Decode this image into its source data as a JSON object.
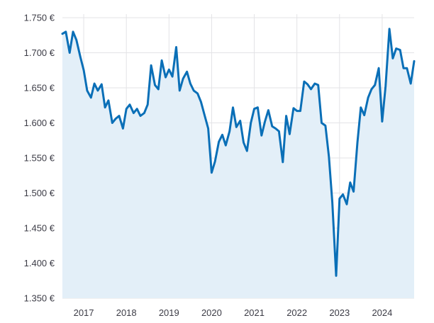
{
  "chart_data": {
    "type": "area",
    "title": "",
    "xlabel": "",
    "ylabel": "",
    "y_tick_labels": [
      "1.750 €",
      "1.700 €",
      "1.650 €",
      "1.600 €",
      "1.550 €",
      "1.500 €",
      "1.450 €",
      "1.400 €",
      "1.350 €"
    ],
    "y_ticks": [
      1750,
      1700,
      1650,
      1600,
      1550,
      1500,
      1450,
      1400,
      1350
    ],
    "x_tick_labels": [
      "2017",
      "2018",
      "2019",
      "2020",
      "2021",
      "2022",
      "2023",
      "2024"
    ],
    "x_ticks": [
      2017,
      2018,
      2019,
      2020,
      2021,
      2022,
      2023,
      2024
    ],
    "xlim": [
      2016.5,
      2024.75
    ],
    "ylim": [
      1350,
      1755
    ],
    "grid": true,
    "colors": {
      "line": "#0a6fb7",
      "fill": "#e3eff8",
      "grid": "#e3e3e6",
      "text": "#3c3c46"
    },
    "series": [
      {
        "x": [
          2016.5,
          2016.58,
          2016.67,
          2016.75,
          2016.83,
          2016.92,
          2017.0,
          2017.08,
          2017.17,
          2017.25,
          2017.33,
          2017.42,
          2017.5,
          2017.58,
          2017.67,
          2017.75,
          2017.83,
          2017.92,
          2018.0,
          2018.08,
          2018.17,
          2018.25,
          2018.33,
          2018.42,
          2018.5,
          2018.58,
          2018.67,
          2018.75,
          2018.83,
          2018.92,
          2019.0,
          2019.08,
          2019.17,
          2019.25,
          2019.33,
          2019.42,
          2019.5,
          2019.58,
          2019.67,
          2019.75,
          2019.83,
          2019.92,
          2020.0,
          2020.08,
          2020.17,
          2020.25,
          2020.33,
          2020.42,
          2020.5,
          2020.58,
          2020.67,
          2020.75,
          2020.83,
          2020.92,
          2021.0,
          2021.08,
          2021.17,
          2021.25,
          2021.33,
          2021.42,
          2021.5,
          2021.58,
          2021.67,
          2021.75,
          2021.83,
          2021.92,
          2022.0,
          2022.08,
          2022.17,
          2022.25,
          2022.33,
          2022.42,
          2022.5,
          2022.58,
          2022.67,
          2022.75,
          2022.83,
          2022.92,
          2023.0,
          2023.08,
          2023.17,
          2023.25,
          2023.33,
          2023.42,
          2023.5,
          2023.58,
          2023.67,
          2023.75,
          2023.83,
          2023.92,
          2024.0,
          2024.08,
          2024.17,
          2024.25,
          2024.33,
          2024.42,
          2024.5,
          2024.58,
          2024.67,
          2024.75
        ],
        "values": [
          1727,
          1730,
          1700,
          1730,
          1718,
          1694,
          1675,
          1646,
          1636,
          1656,
          1646,
          1655,
          1622,
          1632,
          1600,
          1606,
          1610,
          1592,
          1620,
          1626,
          1614,
          1620,
          1610,
          1614,
          1626,
          1682,
          1654,
          1648,
          1689,
          1665,
          1676,
          1666,
          1708,
          1646,
          1663,
          1673,
          1656,
          1646,
          1642,
          1630,
          1612,
          1592,
          1529,
          1545,
          1573,
          1583,
          1568,
          1588,
          1622,
          1594,
          1603,
          1572,
          1560,
          1600,
          1620,
          1622,
          1582,
          1602,
          1618,
          1595,
          1592,
          1588,
          1544,
          1610,
          1584,
          1621,
          1617,
          1617,
          1659,
          1655,
          1648,
          1656,
          1654,
          1600,
          1596,
          1552,
          1487,
          1382,
          1492,
          1498,
          1484,
          1515,
          1502,
          1572,
          1622,
          1611,
          1636,
          1648,
          1654,
          1678,
          1602,
          1652,
          1734,
          1692,
          1706,
          1704,
          1678,
          1678,
          1656,
          1688
        ]
      }
    ]
  }
}
